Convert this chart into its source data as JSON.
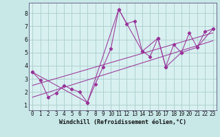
{
  "xlabel": "Windchill (Refroidissement éolien,°C)",
  "bg_color": "#c8e8e8",
  "plot_bg_color": "#d8f0f0",
  "grid_color": "#aacccc",
  "line_color": "#993399",
  "spine_color": "#666688",
  "xlim": [
    -0.5,
    23.5
  ],
  "ylim": [
    0.6,
    8.8
  ],
  "xticks": [
    0,
    1,
    2,
    3,
    4,
    5,
    6,
    7,
    8,
    9,
    10,
    11,
    12,
    13,
    14,
    15,
    16,
    17,
    18,
    19,
    20,
    21,
    22,
    23
  ],
  "yticks": [
    1,
    2,
    3,
    4,
    5,
    6,
    7,
    8
  ],
  "series1_x": [
    0,
    1,
    2,
    3,
    4,
    5,
    6,
    7,
    8,
    9,
    10,
    11,
    12,
    13,
    14,
    15,
    16,
    17,
    18,
    19,
    20,
    21,
    22,
    23
  ],
  "series1_y": [
    3.5,
    2.9,
    1.6,
    1.9,
    2.5,
    2.2,
    2.0,
    1.2,
    2.6,
    3.9,
    5.3,
    8.3,
    7.2,
    7.4,
    5.1,
    4.7,
    6.1,
    3.9,
    5.6,
    5.0,
    6.5,
    5.4,
    6.6,
    6.8
  ],
  "series2_x": [
    0,
    7,
    11,
    14,
    16,
    17,
    19,
    21,
    23
  ],
  "series2_y": [
    3.5,
    1.2,
    8.3,
    5.1,
    6.1,
    3.9,
    5.0,
    5.4,
    6.8
  ],
  "series3_x": [
    0,
    23
  ],
  "series3_y": [
    2.5,
    6.5
  ],
  "series4_x": [
    0,
    23
  ],
  "series4_y": [
    1.6,
    5.9
  ],
  "xlabel_fontsize": 6.0,
  "tick_fontsize": 5.5
}
